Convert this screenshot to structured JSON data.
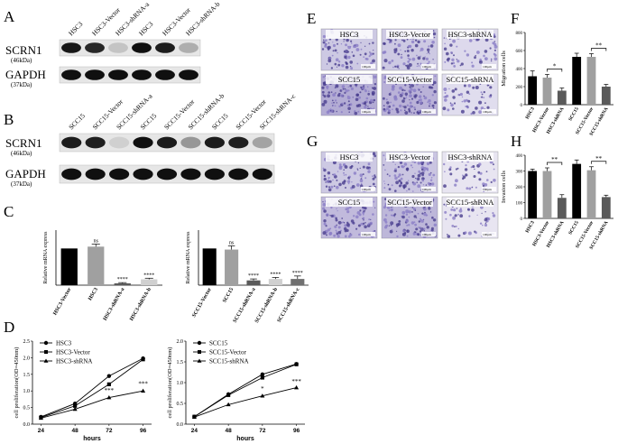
{
  "panel_letters": {
    "A": "A",
    "B": "B",
    "C": "C",
    "D": "D",
    "E": "E",
    "F": "F",
    "G": "G",
    "H": "H"
  },
  "panelA": {
    "lanes": [
      "HSC3",
      "HSC3-Vector",
      "HSC3-shRNA-a",
      "HSC3",
      "HSC3-Vector",
      "HSC3-shRNA-b"
    ],
    "rows": [
      {
        "label": "SCRN1",
        "sub": "(46kDa)",
        "intensity": [
          0.92,
          0.85,
          0.15,
          0.95,
          0.9,
          0.25
        ]
      },
      {
        "label": "GAPDH",
        "sub": "(37kDa)",
        "intensity": [
          0.95,
          0.95,
          0.95,
          0.95,
          0.95,
          0.95
        ]
      }
    ]
  },
  "panelB": {
    "lanes": [
      "SCC15",
      "SCC15-Vector",
      "SCC15-shRNA-a",
      "SCC15",
      "SCC15-Vector",
      "SCC15-shRNA-b",
      "SCC15",
      "SCC15-Vector",
      "SCC15-shRNA-c"
    ],
    "rows": [
      {
        "label": "SCRN1",
        "sub": "(46kDa)",
        "intensity": [
          0.9,
          0.88,
          0.1,
          0.95,
          0.9,
          0.35,
          0.9,
          0.88,
          0.3
        ]
      },
      {
        "label": "GAPDH",
        "sub": "(37kDa)",
        "intensity": [
          0.95,
          0.95,
          0.95,
          0.95,
          0.95,
          0.95,
          0.95,
          0.95,
          0.95
        ]
      }
    ]
  },
  "panelE": {
    "top_labels": [
      "HSC3",
      "HSC3-Vector",
      "HSC3-shRNA"
    ],
    "bottom_labels": [
      "SCC15",
      "SCC15-Vector",
      "SCC15-shRNA"
    ],
    "densities": [
      0.55,
      0.55,
      0.3,
      0.95,
      0.85,
      0.25
    ]
  },
  "panelG": {
    "top_labels": [
      "HSC3",
      "HSC3-Vector",
      "HSC3-shRNA"
    ],
    "bottom_labels": [
      "SCC15",
      "SCC15-Vector",
      "SCC15-shRNA"
    ],
    "densities": [
      0.55,
      0.6,
      0.15,
      0.75,
      0.8,
      0.15
    ]
  },
  "scale_bar_text": "100μm",
  "chart_data": [
    {
      "id": "C1",
      "type": "bar",
      "ylabel": "Relative mRNA express",
      "ylim": [
        0,
        1.5
      ],
      "categories": [
        "HSC3-Vector",
        "HSC3",
        "HSC3-shRNA-a",
        "HSC3-shRNA-b"
      ],
      "values": [
        1.0,
        1.05,
        0.05,
        0.16
      ],
      "errors": [
        0,
        0.07,
        0.02,
        0.03
      ],
      "colors": [
        "#000000",
        "#a0a0a0",
        "#5a5a5a",
        "#d0d0d0"
      ],
      "annotations": [
        "",
        "ns",
        "****",
        "****"
      ]
    },
    {
      "id": "C2",
      "type": "bar",
      "ylabel": "Relative mRNA express",
      "ylim": [
        0,
        1.5
      ],
      "categories": [
        "SCC15-Vector",
        "SCC15",
        "SCC15-shRNA-a",
        "SCC15-shRNA-b",
        "SCC15-shRNA-c"
      ],
      "values": [
        1.0,
        0.97,
        0.13,
        0.17,
        0.17
      ],
      "errors": [
        0,
        0.1,
        0.04,
        0.04,
        0.08
      ],
      "colors": [
        "#000000",
        "#a0a0a0",
        "#5a5a5a",
        "#d0d0d0",
        "#707070"
      ],
      "annotations": [
        "",
        "ns",
        "****",
        "****",
        "****"
      ]
    },
    {
      "id": "D1",
      "type": "line",
      "xlabel": "hours",
      "ylabel": "cell proliferation(OD=450nm)",
      "x": [
        24,
        48,
        72,
        96
      ],
      "ylim": [
        0,
        2.5
      ],
      "yticks": [
        "0.0",
        "0.5",
        "1.0",
        "1.5",
        "2.0",
        "2.5"
      ],
      "series": [
        {
          "name": "HSC3",
          "marker": "circle",
          "values": [
            0.22,
            0.62,
            1.45,
            1.98
          ]
        },
        {
          "name": "HSC3-Vector",
          "marker": "square",
          "values": [
            0.2,
            0.55,
            1.2,
            1.95
          ]
        },
        {
          "name": "HSC3-shRNA",
          "marker": "triangle",
          "values": [
            0.18,
            0.45,
            0.8,
            1.0
          ]
        }
      ],
      "annotations": [
        {
          "x": 72,
          "y": 0.95,
          "text": "***"
        },
        {
          "x": 96,
          "y": 1.15,
          "text": "***"
        }
      ]
    },
    {
      "id": "D2",
      "type": "line",
      "xlabel": "hours",
      "ylabel": "cell proliferation(OD=450nm)",
      "x": [
        24,
        48,
        72,
        96
      ],
      "ylim": [
        0,
        2.0
      ],
      "yticks": [
        "0.0",
        "0.5",
        "1.0",
        "1.5",
        "2.0"
      ],
      "series": [
        {
          "name": "SCC15",
          "marker": "circle",
          "values": [
            0.18,
            0.72,
            1.2,
            1.45
          ]
        },
        {
          "name": "SCC15-Vector",
          "marker": "square",
          "values": [
            0.18,
            0.7,
            1.12,
            1.44
          ]
        },
        {
          "name": "SCC15-shRNA",
          "marker": "triangle",
          "values": [
            0.17,
            0.47,
            0.68,
            0.88
          ]
        }
      ],
      "annotations": [
        {
          "x": 72,
          "y": 0.8,
          "text": "*"
        },
        {
          "x": 96,
          "y": 0.98,
          "text": "***"
        }
      ]
    },
    {
      "id": "F",
      "type": "bar",
      "ylabel": "Migration cells",
      "ylim": [
        0,
        800
      ],
      "yticks": [
        "0",
        "200",
        "400",
        "600",
        "800"
      ],
      "categories": [
        "HSC3",
        "HSC3-Vector",
        "HSC3-shRNA",
        "SCC15",
        "SCC15-Vector",
        "SCC15-shRNA"
      ],
      "values": [
        315,
        300,
        155,
        530,
        530,
        200
      ],
      "errors": [
        60,
        35,
        30,
        40,
        35,
        25
      ],
      "colors": [
        "#000000",
        "#a0a0a0",
        "#5a5a5a",
        "#000000",
        "#a0a0a0",
        "#5a5a5a"
      ],
      "brackets": [
        {
          "from": 1,
          "to": 2,
          "text": "*"
        },
        {
          "from": 4,
          "to": 5,
          "text": "**"
        }
      ]
    },
    {
      "id": "H",
      "type": "bar",
      "ylabel": "Invasion cells",
      "ylim": [
        0,
        400
      ],
      "yticks": [
        "0",
        "100",
        "200",
        "300",
        "400"
      ],
      "categories": [
        "HSC3",
        "HSC3-Vector",
        "HSC3-shRNA",
        "SCC15",
        "SCC15-Vector",
        "SCC15-shRNA"
      ],
      "values": [
        300,
        300,
        130,
        345,
        305,
        135
      ],
      "errors": [
        12,
        20,
        20,
        25,
        22,
        12
      ],
      "colors": [
        "#000000",
        "#a0a0a0",
        "#5a5a5a",
        "#000000",
        "#a0a0a0",
        "#5a5a5a"
      ],
      "brackets": [
        {
          "from": 1,
          "to": 2,
          "text": "**"
        },
        {
          "from": 4,
          "to": 5,
          "text": "**"
        }
      ]
    }
  ]
}
